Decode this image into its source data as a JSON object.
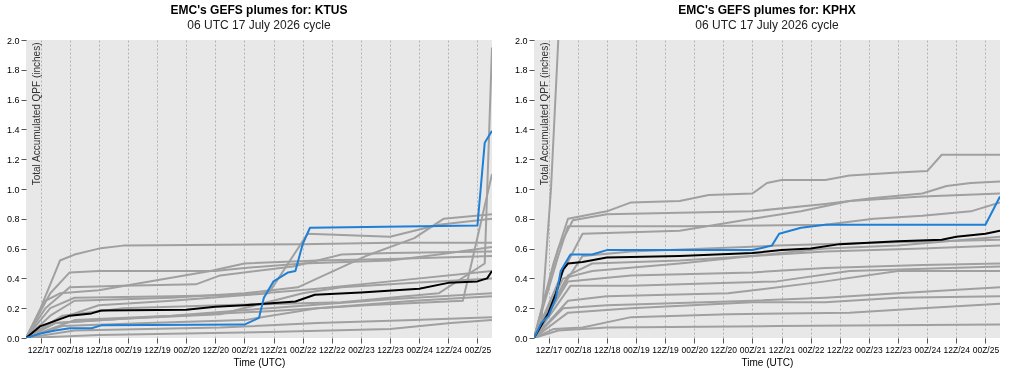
{
  "chart_data": [
    {
      "type": "line",
      "title": "EMC's GEFS plumes for: KTUS",
      "subtitle": "06 UTC 17 July 2026 cycle",
      "xlabel": "Time (UTC)",
      "ylabel": "Total Accumulated QPF (inches)",
      "grid": "x",
      "xlim": [
        "2026-07-17T06:00",
        "2026-07-25T06:00"
      ],
      "xticks": [
        {
          "value": "2026-07-17T12:00",
          "label": "12Z/17"
        },
        {
          "value": "2026-07-18T00:00",
          "label": "00Z/18"
        },
        {
          "value": "2026-07-18T12:00",
          "label": "12Z/18"
        },
        {
          "value": "2026-07-19T00:00",
          "label": "00Z/19"
        },
        {
          "value": "2026-07-19T12:00",
          "label": "12Z/19"
        },
        {
          "value": "2026-07-20T00:00",
          "label": "00Z/20"
        },
        {
          "value": "2026-07-20T12:00",
          "label": "12Z/20"
        },
        {
          "value": "2026-07-21T00:00",
          "label": "00Z/21"
        },
        {
          "value": "2026-07-21T12:00",
          "label": "12Z/21"
        },
        {
          "value": "2026-07-22T00:00",
          "label": "00Z/22"
        },
        {
          "value": "2026-07-22T12:00",
          "label": "12Z/22"
        },
        {
          "value": "2026-07-23T00:00",
          "label": "00Z/23"
        },
        {
          "value": "2026-07-23T12:00",
          "label": "12Z/23"
        },
        {
          "value": "2026-07-24T00:00",
          "label": "00Z/24"
        },
        {
          "value": "2026-07-24T12:00",
          "label": "12Z/24"
        },
        {
          "value": "2026-07-25T00:00",
          "label": "00Z/25"
        }
      ],
      "ylim": [
        0,
        2
      ],
      "yticks": [
        {
          "value": 0,
          "label": "0.0"
        },
        0.2,
        0.4,
        0.6,
        0.8,
        {
          "value": 1,
          "label": "1.0"
        },
        1.2,
        1.4,
        1.6,
        1.8,
        {
          "value": 2,
          "label": "2.0"
        }
      ],
      "series": [
        {
          "color": "#a0a0a0",
          "x": [
            "2026-07-17T06:00",
            "2026-07-17T12:00",
            "2026-07-17T20:00",
            "2026-07-18T02:00",
            "2026-07-18T12:00",
            "2026-07-18T22:00",
            "2026-07-22T00:00",
            "2026-07-23T12:00",
            "2026-07-25T06:00"
          ],
          "values": [
            0,
            0.2,
            0.52,
            0.56,
            0.6,
            0.62,
            0.63,
            0.64,
            0.64
          ]
        },
        {
          "color": "#a0a0a0",
          "x": [
            "2026-07-17T06:00",
            "2026-07-17T16:00",
            "2026-07-18T00:00",
            "2026-07-18T12:00",
            "2026-07-20T12:00",
            "2026-07-21T00:00",
            "2026-07-22T00:00",
            "2026-07-23T12:00",
            "2026-07-24T08:00",
            "2026-07-25T06:00"
          ],
          "values": [
            0,
            0.3,
            0.44,
            0.45,
            0.45,
            0.47,
            0.5,
            0.52,
            0.56,
            0.61
          ]
        },
        {
          "color": "#a0a0a0",
          "x": [
            "2026-07-17T06:00",
            "2026-07-17T14:00",
            "2026-07-18T00:00",
            "2026-07-18T22:00",
            "2026-07-20T04:00",
            "2026-07-20T14:00",
            "2026-07-21T20:00",
            "2026-07-22T16:00",
            "2026-07-23T12:00",
            "2026-07-25T06:00"
          ],
          "values": [
            0,
            0.2,
            0.34,
            0.35,
            0.36,
            0.42,
            0.48,
            0.56,
            0.57,
            0.58
          ]
        },
        {
          "color": "#a0a0a0",
          "x": [
            "2026-07-17T06:00",
            "2026-07-17T16:00",
            "2026-07-18T02:00",
            "2026-07-19T18:00",
            "2026-07-21T00:00",
            "2026-07-21T22:00",
            "2026-07-23T02:00",
            "2026-07-23T22:00",
            "2026-07-24T10:00",
            "2026-07-25T06:00"
          ],
          "values": [
            0,
            0.15,
            0.25,
            0.27,
            0.3,
            0.34,
            0.55,
            0.67,
            0.8,
            0.83
          ]
        },
        {
          "color": "#a0a0a0",
          "x": [
            "2026-07-17T06:00",
            "2026-07-17T18:00",
            "2026-07-18T12:00",
            "2026-07-19T18:00",
            "2026-07-21T10:00",
            "2026-07-22T02:00",
            "2026-07-23T12:00",
            "2026-07-23T22:00",
            "2026-07-24T08:00",
            "2026-07-25T06:00"
          ],
          "values": [
            0,
            0.12,
            0.22,
            0.25,
            0.3,
            0.7,
            0.68,
            0.72,
            0.76,
            0.8
          ]
        },
        {
          "color": "#a0a0a0",
          "x": [
            "2026-07-17T06:00",
            "2026-07-17T18:00",
            "2026-07-18T22:00",
            "2026-07-20T14:00",
            "2026-07-22T00:00",
            "2026-07-22T16:00",
            "2026-07-23T22:00",
            "2026-07-25T06:00"
          ],
          "values": [
            0,
            0.1,
            0.13,
            0.16,
            0.3,
            0.34,
            0.37,
            0.4
          ]
        },
        {
          "color": "#a0a0a0",
          "x": [
            "2026-07-17T06:00",
            "2026-07-17T21:00",
            "2026-07-19T08:00",
            "2026-07-21T00:00",
            "2026-07-22T06:00",
            "2026-07-23T22:00",
            "2026-07-25T06:00"
          ],
          "values": [
            0,
            0.08,
            0.1,
            0.12,
            0.2,
            0.25,
            0.28
          ]
        },
        {
          "color": "#a0a0a0",
          "x": [
            "2026-07-17T06:00",
            "2026-07-18T02:00",
            "2026-07-20T14:00",
            "2026-07-22T06:00",
            "2026-07-23T22:00",
            "2026-07-25T06:00"
          ],
          "values": [
            0,
            0.05,
            0.07,
            0.1,
            0.12,
            0.14
          ]
        },
        {
          "color": "#a0a0a0",
          "x": [
            "2026-07-17T06:00",
            "2026-07-18T12:00",
            "2026-07-21T10:00",
            "2026-07-23T12:00",
            "2026-07-24T13:00",
            "2026-07-25T06:00"
          ],
          "values": [
            0,
            0.02,
            0.04,
            0.06,
            0.1,
            0.12
          ]
        },
        {
          "color": "#a0a0a0",
          "x": [
            "2026-07-17T06:00",
            "2026-07-17T16:00",
            "2026-07-18T02:00",
            "2026-07-19T18:00",
            "2026-07-21T00:00",
            "2026-07-22T06:00",
            "2026-07-23T12:00",
            "2026-07-25T06:00"
          ],
          "values": [
            0,
            0.2,
            0.27,
            0.28,
            0.29,
            0.33,
            0.38,
            0.45
          ]
        },
        {
          "color": "#a0a0a0",
          "x": [
            "2026-07-17T06:00",
            "2026-07-17T21:00",
            "2026-07-18T22:00",
            "2026-07-20T14:00",
            "2026-07-22T16:00",
            "2026-07-24T08:00",
            "2026-07-25T03:00",
            "2026-07-25T06:00"
          ],
          "values": [
            0,
            0.15,
            0.2,
            0.22,
            0.24,
            0.3,
            0.5,
            1.95
          ]
        },
        {
          "color": "#a0a0a0",
          "x": [
            "2026-07-17T06:00",
            "2026-07-17T18:00",
            "2026-07-19T08:00",
            "2026-07-21T10:00",
            "2026-07-23T02:00",
            "2026-07-24T18:00",
            "2026-07-25T06:00"
          ],
          "values": [
            0,
            0.1,
            0.14,
            0.18,
            0.22,
            0.25,
            1.1
          ]
        },
        {
          "color": "#a0a0a0",
          "x": [
            "2026-07-17T06:00",
            "2026-07-18T02:00",
            "2026-07-19T18:00",
            "2026-07-21T10:00",
            "2026-07-23T12:00",
            "2026-07-25T06:00"
          ],
          "values": [
            0,
            0.12,
            0.15,
            0.2,
            0.26,
            0.3
          ]
        },
        {
          "color": "#a0a0a0",
          "x": [
            "2026-07-17T06:00",
            "2026-07-17T14:00",
            "2026-07-17T20:00",
            "2026-07-18T12:00",
            "2026-07-20T10:00",
            "2026-07-21T00:00",
            "2026-07-22T06:00",
            "2026-07-23T12:00",
            "2026-07-25T06:00"
          ],
          "values": [
            0,
            0.25,
            0.3,
            0.32,
            0.45,
            0.5,
            0.52,
            0.53,
            0.55
          ]
        },
        {
          "color": "#000000",
          "x": [
            "2026-07-17T06:00",
            "2026-07-17T12:00",
            "2026-07-18T00:00",
            "2026-07-18T09:00",
            "2026-07-18T13:00",
            "2026-07-20T00:00",
            "2026-07-20T12:00",
            "2026-07-21T00:00",
            "2026-07-21T21:00",
            "2026-07-22T05:00",
            "2026-07-23T00:00",
            "2026-07-24T00:00",
            "2026-07-24T12:00",
            "2026-07-25T00:00",
            "2026-07-25T04:00",
            "2026-07-25T06:00"
          ],
          "values": [
            0,
            0.08,
            0.15,
            0.165,
            0.185,
            0.19,
            0.21,
            0.22,
            0.245,
            0.29,
            0.305,
            0.33,
            0.37,
            0.38,
            0.4,
            0.45
          ]
        },
        {
          "color": "#1f7fd6",
          "x": [
            "2026-07-17T06:00",
            "2026-07-17T12:00",
            "2026-07-17T18:00",
            "2026-07-18T00:00",
            "2026-07-18T09:00",
            "2026-07-18T13:00",
            "2026-07-21T00:00",
            "2026-07-21T06:00",
            "2026-07-21T08:00",
            "2026-07-21T12:00",
            "2026-07-21T18:00",
            "2026-07-21T21:00",
            "2026-07-22T00:00",
            "2026-07-22T03:00",
            "2026-07-25T00:00",
            "2026-07-25T03:00",
            "2026-07-25T06:00"
          ],
          "values": [
            0,
            0.03,
            0.05,
            0.065,
            0.065,
            0.085,
            0.09,
            0.135,
            0.27,
            0.38,
            0.44,
            0.45,
            0.63,
            0.74,
            0.755,
            1.31,
            1.39
          ]
        }
      ]
    },
    {
      "type": "line",
      "title": "EMC's GEFS plumes for: KPHX",
      "subtitle": "06 UTC 17 July 2026 cycle",
      "xlabel": "Time (UTC)",
      "ylabel": "Total Accumulated QPF (inches)",
      "grid": "x",
      "xlim": [
        "2026-07-17T06:00",
        "2026-07-25T06:00"
      ],
      "xticks": [
        {
          "value": "2026-07-17T12:00",
          "label": "12Z/17"
        },
        {
          "value": "2026-07-18T00:00",
          "label": "00Z/18"
        },
        {
          "value": "2026-07-18T12:00",
          "label": "12Z/18"
        },
        {
          "value": "2026-07-19T00:00",
          "label": "00Z/19"
        },
        {
          "value": "2026-07-19T12:00",
          "label": "12Z/19"
        },
        {
          "value": "2026-07-20T00:00",
          "label": "00Z/20"
        },
        {
          "value": "2026-07-20T12:00",
          "label": "12Z/20"
        },
        {
          "value": "2026-07-21T00:00",
          "label": "00Z/21"
        },
        {
          "value": "2026-07-21T12:00",
          "label": "12Z/21"
        },
        {
          "value": "2026-07-22T00:00",
          "label": "00Z/22"
        },
        {
          "value": "2026-07-22T12:00",
          "label": "12Z/22"
        },
        {
          "value": "2026-07-23T00:00",
          "label": "00Z/23"
        },
        {
          "value": "2026-07-23T12:00",
          "label": "12Z/23"
        },
        {
          "value": "2026-07-24T00:00",
          "label": "00Z/24"
        },
        {
          "value": "2026-07-24T12:00",
          "label": "12Z/24"
        },
        {
          "value": "2026-07-25T00:00",
          "label": "00Z/25"
        }
      ],
      "ylim": [
        0,
        2
      ],
      "yticks": [
        {
          "value": 0,
          "label": "0.0"
        },
        0.2,
        0.4,
        0.6,
        0.8,
        {
          "value": 1,
          "label": "1.0"
        },
        1.2,
        1.4,
        1.6,
        1.8,
        {
          "value": 2,
          "label": "2.0"
        }
      ],
      "series": [
        {
          "color": "#a0a0a0",
          "x": [
            "2026-07-17T06:00",
            "2026-07-17T09:00",
            "2026-07-17T13:00",
            "2026-07-17T16:00"
          ],
          "values": [
            0,
            0.1,
            1.0,
            2.0
          ]
        },
        {
          "color": "#a0a0a0",
          "x": [
            "2026-07-17T06:00",
            "2026-07-17T14:00",
            "2026-07-17T20:00",
            "2026-07-18T12:00",
            "2026-07-18T22:00",
            "2026-07-19T18:00",
            "2026-07-20T06:00",
            "2026-07-21T00:00",
            "2026-07-21T06:00",
            "2026-07-21T12:00",
            "2026-07-22T06:00",
            "2026-07-22T16:00",
            "2026-07-23T02:00",
            "2026-07-23T12:00",
            "2026-07-24T00:00",
            "2026-07-24T06:00",
            "2026-07-25T06:00"
          ],
          "values": [
            0,
            0.5,
            0.8,
            0.85,
            0.91,
            0.92,
            0.96,
            0.97,
            1.04,
            1.06,
            1.06,
            1.09,
            1.1,
            1.11,
            1.12,
            1.23,
            1.23
          ]
        },
        {
          "color": "#a0a0a0",
          "x": [
            "2026-07-17T06:00",
            "2026-07-17T16:00",
            "2026-07-17T22:00",
            "2026-07-18T12:00",
            "2026-07-21T00:00",
            "2026-07-22T06:00",
            "2026-07-23T02:00",
            "2026-07-23T22:00",
            "2026-07-24T08:00",
            "2026-07-24T18:00",
            "2026-07-25T06:00"
          ],
          "values": [
            0,
            0.6,
            0.79,
            0.83,
            0.85,
            0.9,
            0.94,
            0.97,
            1.02,
            1.04,
            1.05
          ]
        },
        {
          "color": "#a0a0a0",
          "x": [
            "2026-07-17T06:00",
            "2026-07-17T16:00",
            "2026-07-17T20:00",
            "2026-07-19T18:00",
            "2026-07-22T06:00",
            "2026-07-23T02:00",
            "2026-07-23T22:00",
            "2026-07-24T18:00",
            "2026-07-25T06:00"
          ],
          "values": [
            0,
            0.55,
            0.75,
            0.75,
            0.76,
            0.8,
            0.82,
            0.85,
            0.91
          ]
        },
        {
          "color": "#a0a0a0",
          "x": [
            "2026-07-17T06:00",
            "2026-07-17T18:00",
            "2026-07-18T02:00",
            "2026-07-19T18:00",
            "2026-07-21T00:00",
            "2026-07-21T20:00",
            "2026-07-22T16:00",
            "2026-07-23T22:00",
            "2026-07-25T06:00"
          ],
          "values": [
            0,
            0.45,
            0.7,
            0.72,
            0.8,
            0.85,
            0.92,
            0.95,
            0.97
          ]
        },
        {
          "color": "#a0a0a0",
          "x": [
            "2026-07-17T06:00",
            "2026-07-17T18:00",
            "2026-07-18T06:00",
            "2026-07-19T18:00",
            "2026-07-21T00:00",
            "2026-07-22T06:00",
            "2026-07-23T12:00",
            "2026-07-25T06:00"
          ],
          "values": [
            0,
            0.4,
            0.45,
            0.5,
            0.55,
            0.6,
            0.62,
            0.68
          ]
        },
        {
          "color": "#a0a0a0",
          "x": [
            "2026-07-17T06:00",
            "2026-07-17T20:00",
            "2026-07-18T22:00",
            "2026-07-21T00:00",
            "2026-07-22T06:00",
            "2026-07-23T22:00",
            "2026-07-25T06:00"
          ],
          "values": [
            0,
            0.38,
            0.42,
            0.44,
            0.47,
            0.49,
            0.5
          ]
        },
        {
          "color": "#a0a0a0",
          "x": [
            "2026-07-17T06:00",
            "2026-07-17T21:00",
            "2026-07-18T22:00",
            "2026-07-21T10:00",
            "2026-07-22T16:00",
            "2026-07-25T06:00"
          ],
          "values": [
            0,
            0.35,
            0.35,
            0.38,
            0.45,
            0.48
          ]
        },
        {
          "color": "#a0a0a0",
          "x": [
            "2026-07-17T06:00",
            "2026-07-17T20:00",
            "2026-07-18T12:00",
            "2026-07-20T14:00",
            "2026-07-22T06:00",
            "2026-07-23T12:00",
            "2026-07-25T06:00"
          ],
          "values": [
            0,
            0.25,
            0.28,
            0.3,
            0.38,
            0.45,
            0.45
          ]
        },
        {
          "color": "#a0a0a0",
          "x": [
            "2026-07-17T06:00",
            "2026-07-17T18:00",
            "2026-07-18T12:00",
            "2026-07-21T00:00",
            "2026-07-22T06:00",
            "2026-07-23T12:00",
            "2026-07-25T06:00"
          ],
          "values": [
            0,
            0.2,
            0.22,
            0.25,
            0.27,
            0.3,
            0.34
          ]
        },
        {
          "color": "#a0a0a0",
          "x": [
            "2026-07-17T06:00",
            "2026-07-17T20:00",
            "2026-07-18T22:00",
            "2026-07-21T00:00",
            "2026-07-22T06:00",
            "2026-07-23T12:00",
            "2026-07-25T06:00"
          ],
          "values": [
            0,
            0.17,
            0.2,
            0.24,
            0.24,
            0.27,
            0.28
          ]
        },
        {
          "color": "#a0a0a0",
          "x": [
            "2026-07-17T06:00",
            "2026-07-17T14:00",
            "2026-07-18T02:00",
            "2026-07-18T22:00",
            "2026-07-20T14:00",
            "2026-07-22T16:00",
            "2026-07-23T22:00",
            "2026-07-25T06:00"
          ],
          "values": [
            0,
            0.06,
            0.07,
            0.14,
            0.16,
            0.17,
            0.2,
            0.23
          ]
        },
        {
          "color": "#a0a0a0",
          "x": [
            "2026-07-17T06:00",
            "2026-07-17T16:00",
            "2026-07-18T12:00",
            "2026-07-21T10:00",
            "2026-07-25T06:00"
          ],
          "values": [
            0,
            0.05,
            0.07,
            0.08,
            0.09
          ]
        },
        {
          "color": "#a0a0a0",
          "x": [
            "2026-07-17T06:00",
            "2026-07-17T18:00",
            "2026-07-18T02:00",
            "2026-07-18T22:00",
            "2026-07-21T10:00",
            "2026-07-23T02:00",
            "2026-07-25T06:00"
          ],
          "values": [
            0,
            0.35,
            0.55,
            0.58,
            0.62,
            0.64,
            0.66
          ]
        },
        {
          "color": "#a0a0a0",
          "x": [
            "2026-07-17T06:00",
            "2026-07-17T20:00",
            "2026-07-18T06:00",
            "2026-07-19T18:00",
            "2026-07-21T10:00",
            "2026-07-22T06:00",
            "2026-07-23T22:00",
            "2026-07-25T06:00"
          ],
          "values": [
            0,
            0.42,
            0.5,
            0.52,
            0.56,
            0.58,
            0.6,
            0.62
          ]
        },
        {
          "color": "#000000",
          "x": [
            "2026-07-17T06:00",
            "2026-07-17T12:00",
            "2026-07-17T15:00",
            "2026-07-17T18:00",
            "2026-07-17T20:00",
            "2026-07-18T02:00",
            "2026-07-18T12:00",
            "2026-07-19T18:00",
            "2026-07-21T00:00",
            "2026-07-21T12:00",
            "2026-07-22T00:00",
            "2026-07-22T12:00",
            "2026-07-23T12:00",
            "2026-07-24T06:00",
            "2026-07-24T12:00",
            "2026-07-25T00:00",
            "2026-07-25T06:00"
          ],
          "values": [
            0,
            0.17,
            0.3,
            0.46,
            0.5,
            0.51,
            0.54,
            0.55,
            0.57,
            0.59,
            0.6,
            0.63,
            0.65,
            0.66,
            0.68,
            0.7,
            0.72
          ]
        },
        {
          "color": "#1f7fd6",
          "x": [
            "2026-07-17T06:00",
            "2026-07-17T09:00",
            "2026-07-17T12:00",
            "2026-07-17T15:00",
            "2026-07-17T17:00",
            "2026-07-17T21:00",
            "2026-07-18T06:00",
            "2026-07-18T12:00",
            "2026-07-21T00:00",
            "2026-07-21T08:00",
            "2026-07-21T11:00",
            "2026-07-21T20:00",
            "2026-07-22T06:00",
            "2026-07-25T00:00",
            "2026-07-25T06:00"
          ],
          "values": [
            0,
            0.1,
            0.15,
            0.27,
            0.45,
            0.56,
            0.56,
            0.59,
            0.59,
            0.62,
            0.7,
            0.74,
            0.76,
            0.76,
            0.95
          ]
        }
      ]
    }
  ]
}
